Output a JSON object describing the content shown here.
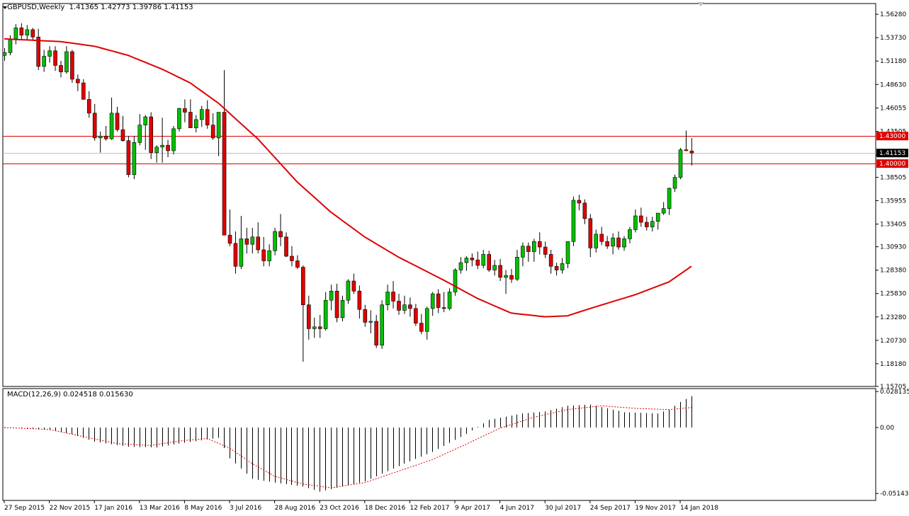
{
  "header": {
    "symbol": "GBPUSD,Weekly",
    "ohlc": "1.41365 1.42773 1.39786 1.41153"
  },
  "macd_header": "MACD(12,26,9) 0.024518 0.015630",
  "colors": {
    "bull": "#00c000",
    "bear": "#e00000",
    "ma": "#e00000",
    "level": "#e00000",
    "bid": "#c0c0c0",
    "signal": "#e00000",
    "histogram": "#000000"
  },
  "chart_data": [
    {
      "type": "candlestick",
      "title": "GBPUSD,Weekly",
      "ylim": [
        1.157,
        1.5745
      ],
      "y_ticks": [
        "1.56280",
        "1.53730",
        "1.51180",
        "1.48630",
        "1.46055",
        "1.43505",
        "1.40955",
        "1.38505",
        "1.35955",
        "1.33405",
        "1.30930",
        "1.28380",
        "1.25830",
        "1.23280",
        "1.20730",
        "1.18180",
        "1.15705"
      ],
      "x_ticks": [
        {
          "label": "27 Sep 2015",
          "i": 0
        },
        {
          "label": "22 Nov 2015",
          "i": 8
        },
        {
          "label": "17 Jan 2016",
          "i": 16
        },
        {
          "label": "13 Mar 2016",
          "i": 24
        },
        {
          "label": "8 May 2016",
          "i": 32
        },
        {
          "label": "3 Jul 2016",
          "i": 40
        },
        {
          "label": "28 Aug 2016",
          "i": 48
        },
        {
          "label": "23 Oct 2016",
          "i": 56
        },
        {
          "label": "18 Dec 2016",
          "i": 64
        },
        {
          "label": "12 Feb 2017",
          "i": 72
        },
        {
          "label": "9 Apr 2017",
          "i": 80
        },
        {
          "label": "4 Jun 2017",
          "i": 88
        },
        {
          "label": "30 Jul 2017",
          "i": 96
        },
        {
          "label": "24 Sep 2017",
          "i": 104
        },
        {
          "label": "19 Nov 2017",
          "i": 112
        },
        {
          "label": "14 Jan 2018",
          "i": 120
        }
      ],
      "price_labels": [
        {
          "text": "1.43000",
          "value": 1.43,
          "style": "level"
        },
        {
          "text": "1.41153",
          "value": 1.41153,
          "style": "bid"
        },
        {
          "text": "1.40000",
          "value": 1.4,
          "style": "level"
        }
      ],
      "candles": [
        [
          1.518,
          1.526,
          1.512,
          1.521
        ],
        [
          1.521,
          1.54,
          1.518,
          1.536
        ],
        [
          1.536,
          1.552,
          1.53,
          1.548
        ],
        [
          1.548,
          1.553,
          1.535,
          1.54
        ],
        [
          1.54,
          1.551,
          1.535,
          1.546
        ],
        [
          1.546,
          1.548,
          1.535,
          1.538
        ],
        [
          1.538,
          1.547,
          1.502,
          1.506
        ],
        [
          1.506,
          1.524,
          1.5,
          1.517
        ],
        [
          1.517,
          1.528,
          1.51,
          1.523
        ],
        [
          1.523,
          1.528,
          1.501,
          1.507
        ],
        [
          1.507,
          1.512,
          1.494,
          1.5
        ],
        [
          1.5,
          1.528,
          1.498,
          1.522
        ],
        [
          1.522,
          1.524,
          1.488,
          1.492
        ],
        [
          1.492,
          1.497,
          1.479,
          1.488
        ],
        [
          1.488,
          1.492,
          1.47,
          1.47
        ],
        [
          1.47,
          1.479,
          1.45,
          1.455
        ],
        [
          1.455,
          1.465,
          1.425,
          1.428
        ],
        [
          1.428,
          1.435,
          1.412,
          1.43
        ],
        [
          1.43,
          1.441,
          1.425,
          1.427
        ],
        [
          1.427,
          1.472,
          1.426,
          1.455
        ],
        [
          1.455,
          1.462,
          1.435,
          1.437
        ],
        [
          1.437,
          1.452,
          1.424,
          1.425
        ],
        [
          1.425,
          1.43,
          1.385,
          1.388
        ],
        [
          1.388,
          1.43,
          1.383,
          1.423
        ],
        [
          1.423,
          1.454,
          1.42,
          1.442
        ],
        [
          1.442,
          1.453,
          1.415,
          1.451
        ],
        [
          1.451,
          1.456,
          1.405,
          1.412
        ],
        [
          1.412,
          1.42,
          1.401,
          1.418
        ],
        [
          1.418,
          1.45,
          1.401,
          1.42
        ],
        [
          1.42,
          1.426,
          1.407,
          1.414
        ],
        [
          1.414,
          1.441,
          1.41,
          1.438
        ],
        [
          1.438,
          1.461,
          1.435,
          1.46
        ],
        [
          1.46,
          1.47,
          1.445,
          1.456
        ],
        [
          1.456,
          1.47,
          1.439,
          1.439
        ],
        [
          1.439,
          1.453,
          1.434,
          1.448
        ],
        [
          1.448,
          1.463,
          1.44,
          1.459
        ],
        [
          1.459,
          1.469,
          1.438,
          1.442
        ],
        [
          1.442,
          1.455,
          1.426,
          1.428
        ],
        [
          1.428,
          1.456,
          1.408,
          1.456
        ],
        [
          1.456,
          1.502,
          1.322,
          1.322
        ],
        [
          1.322,
          1.35,
          1.31,
          1.313
        ],
        [
          1.313,
          1.326,
          1.28,
          1.288
        ],
        [
          1.288,
          1.343,
          1.285,
          1.318
        ],
        [
          1.318,
          1.33,
          1.302,
          1.312
        ],
        [
          1.312,
          1.33,
          1.302,
          1.32
        ],
        [
          1.32,
          1.336,
          1.302,
          1.306
        ],
        [
          1.306,
          1.32,
          1.288,
          1.294
        ],
        [
          1.294,
          1.312,
          1.288,
          1.305
        ],
        [
          1.305,
          1.33,
          1.3,
          1.326
        ],
        [
          1.326,
          1.345,
          1.31,
          1.32
        ],
        [
          1.32,
          1.325,
          1.298,
          1.299
        ],
        [
          1.299,
          1.31,
          1.288,
          1.294
        ],
        [
          1.294,
          1.3,
          1.285,
          1.287
        ],
        [
          1.287,
          1.289,
          1.184,
          1.246
        ],
        [
          1.246,
          1.256,
          1.208,
          1.22
        ],
        [
          1.22,
          1.232,
          1.21,
          1.222
        ],
        [
          1.222,
          1.235,
          1.21,
          1.22
        ],
        [
          1.22,
          1.26,
          1.218,
          1.251
        ],
        [
          1.251,
          1.268,
          1.24,
          1.261
        ],
        [
          1.261,
          1.269,
          1.227,
          1.232
        ],
        [
          1.232,
          1.256,
          1.228,
          1.251
        ],
        [
          1.251,
          1.274,
          1.247,
          1.272
        ],
        [
          1.272,
          1.28,
          1.258,
          1.261
        ],
        [
          1.261,
          1.267,
          1.231,
          1.241
        ],
        [
          1.241,
          1.246,
          1.222,
          1.227
        ],
        [
          1.227,
          1.24,
          1.215,
          1.228
        ],
        [
          1.228,
          1.235,
          1.199,
          1.202
        ],
        [
          1.202,
          1.251,
          1.198,
          1.246
        ],
        [
          1.246,
          1.268,
          1.24,
          1.26
        ],
        [
          1.26,
          1.272,
          1.242,
          1.25
        ],
        [
          1.25,
          1.258,
          1.235,
          1.24
        ],
        [
          1.24,
          1.256,
          1.236,
          1.246
        ],
        [
          1.246,
          1.254,
          1.233,
          1.242
        ],
        [
          1.242,
          1.247,
          1.223,
          1.226
        ],
        [
          1.226,
          1.236,
          1.214,
          1.217
        ],
        [
          1.217,
          1.244,
          1.208,
          1.242
        ],
        [
          1.242,
          1.26,
          1.234,
          1.258
        ],
        [
          1.258,
          1.263,
          1.237,
          1.243
        ],
        [
          1.243,
          1.26,
          1.238,
          1.242
        ],
        [
          1.242,
          1.264,
          1.24,
          1.26
        ],
        [
          1.26,
          1.286,
          1.256,
          1.284
        ],
        [
          1.284,
          1.298,
          1.28,
          1.292
        ],
        [
          1.292,
          1.299,
          1.283,
          1.297
        ],
        [
          1.297,
          1.302,
          1.288,
          1.295
        ],
        [
          1.295,
          1.304,
          1.285,
          1.289
        ],
        [
          1.289,
          1.306,
          1.286,
          1.301
        ],
        [
          1.301,
          1.305,
          1.282,
          1.284
        ],
        [
          1.284,
          1.295,
          1.278,
          1.289
        ],
        [
          1.289,
          1.296,
          1.272,
          1.276
        ],
        [
          1.276,
          1.284,
          1.258,
          1.278
        ],
        [
          1.278,
          1.285,
          1.27,
          1.274
        ],
        [
          1.274,
          1.306,
          1.272,
          1.298
        ],
        [
          1.298,
          1.314,
          1.288,
          1.31
        ],
        [
          1.31,
          1.314,
          1.293,
          1.304
        ],
        [
          1.304,
          1.318,
          1.293,
          1.315
        ],
        [
          1.315,
          1.325,
          1.301,
          1.309
        ],
        [
          1.309,
          1.315,
          1.297,
          1.301
        ],
        [
          1.301,
          1.306,
          1.28,
          1.288
        ],
        [
          1.288,
          1.292,
          1.278,
          1.284
        ],
        [
          1.284,
          1.297,
          1.28,
          1.291
        ],
        [
          1.291,
          1.315,
          1.286,
          1.315
        ],
        [
          1.315,
          1.364,
          1.31,
          1.36
        ],
        [
          1.36,
          1.366,
          1.349,
          1.357
        ],
        [
          1.357,
          1.361,
          1.334,
          1.34
        ],
        [
          1.34,
          1.345,
          1.298,
          1.308
        ],
        [
          1.308,
          1.328,
          1.303,
          1.323
        ],
        [
          1.323,
          1.331,
          1.311,
          1.315
        ],
        [
          1.315,
          1.321,
          1.307,
          1.31
        ],
        [
          1.31,
          1.324,
          1.301,
          1.319
        ],
        [
          1.319,
          1.326,
          1.306,
          1.309
        ],
        [
          1.309,
          1.321,
          1.305,
          1.318
        ],
        [
          1.318,
          1.331,
          1.313,
          1.328
        ],
        [
          1.328,
          1.35,
          1.325,
          1.343
        ],
        [
          1.343,
          1.352,
          1.331,
          1.336
        ],
        [
          1.336,
          1.342,
          1.327,
          1.331
        ],
        [
          1.331,
          1.342,
          1.326,
          1.337
        ],
        [
          1.337,
          1.346,
          1.328,
          1.346
        ],
        [
          1.346,
          1.358,
          1.344,
          1.351
        ],
        [
          1.351,
          1.374,
          1.344,
          1.373
        ],
        [
          1.373,
          1.388,
          1.369,
          1.385
        ],
        [
          1.385,
          1.417,
          1.383,
          1.415
        ],
        [
          1.415,
          1.436,
          1.414,
          1.414
        ],
        [
          1.41365,
          1.42773,
          1.39786,
          1.41153
        ]
      ],
      "moving_average": {
        "anchors": [
          [
            0,
            1.536
          ],
          [
            10,
            1.533
          ],
          [
            16,
            1.528
          ],
          [
            22,
            1.518
          ],
          [
            28,
            1.503
          ],
          [
            33,
            1.488
          ],
          [
            38,
            1.466
          ],
          [
            45,
            1.427
          ],
          [
            52,
            1.38
          ],
          [
            58,
            1.347
          ],
          [
            64,
            1.32
          ],
          [
            70,
            1.298
          ],
          [
            78,
            1.273
          ],
          [
            84,
            1.253
          ],
          [
            90,
            1.237
          ],
          [
            96,
            1.233
          ],
          [
            100,
            1.234
          ],
          [
            104,
            1.242
          ],
          [
            112,
            1.257
          ],
          [
            118,
            1.271
          ],
          [
            122,
            1.288
          ]
        ]
      }
    },
    {
      "type": "bar",
      "title": "MACD(12,26,9) 0.024518 0.015630",
      "ylim": [
        -0.05685,
        0.0304
      ],
      "y_ticks": [
        "0.028135",
        "0.00",
        "-0.051434"
      ],
      "histogram_anchors": [
        [
          0,
          0.0005
        ],
        [
          8,
          -0.002
        ],
        [
          12,
          -0.005
        ],
        [
          16,
          -0.011
        ],
        [
          22,
          -0.015
        ],
        [
          27,
          -0.0155
        ],
        [
          31,
          -0.0125
        ],
        [
          35,
          -0.01
        ],
        [
          38,
          -0.008
        ],
        [
          40,
          -0.024
        ],
        [
          44,
          -0.04
        ],
        [
          48,
          -0.043
        ],
        [
          53,
          -0.046
        ],
        [
          56,
          -0.05
        ],
        [
          60,
          -0.046
        ],
        [
          64,
          -0.042
        ],
        [
          70,
          -0.03
        ],
        [
          76,
          -0.019
        ],
        [
          82,
          -0.005
        ],
        [
          86,
          0.006
        ],
        [
          92,
          0.011
        ],
        [
          96,
          0.0125
        ],
        [
          100,
          0.017
        ],
        [
          104,
          0.018
        ],
        [
          110,
          0.012
        ],
        [
          116,
          0.011
        ],
        [
          118,
          0.014
        ],
        [
          120,
          0.02
        ],
        [
          122,
          0.0245
        ]
      ],
      "signal_anchors": [
        [
          0,
          0.0
        ],
        [
          8,
          -0.0015
        ],
        [
          14,
          -0.007
        ],
        [
          20,
          -0.0125
        ],
        [
          26,
          -0.014
        ],
        [
          31,
          -0.0105
        ],
        [
          36,
          -0.0085
        ],
        [
          40,
          -0.016
        ],
        [
          44,
          -0.028
        ],
        [
          48,
          -0.038
        ],
        [
          53,
          -0.044
        ],
        [
          58,
          -0.047
        ],
        [
          64,
          -0.043
        ],
        [
          70,
          -0.034
        ],
        [
          76,
          -0.025
        ],
        [
          82,
          -0.013
        ],
        [
          88,
          -0.0005
        ],
        [
          94,
          0.008
        ],
        [
          100,
          0.014
        ],
        [
          106,
          0.017
        ],
        [
          112,
          0.015
        ],
        [
          118,
          0.014
        ],
        [
          122,
          0.0156
        ]
      ]
    }
  ]
}
